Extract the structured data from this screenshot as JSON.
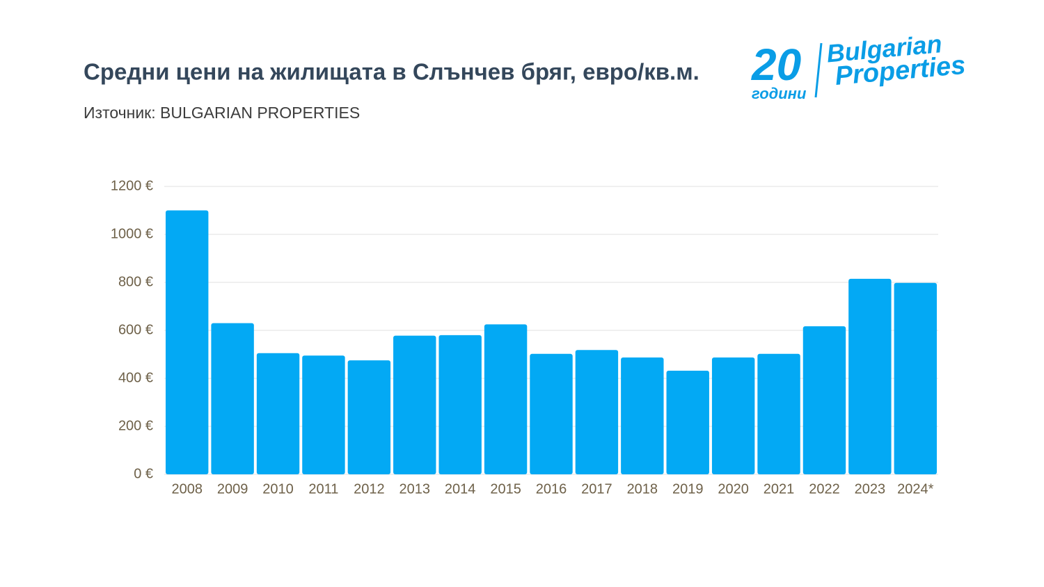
{
  "chart_data": {
    "type": "bar",
    "title": "Средни цени на жилищата в Слънчев бряг, евро/кв.м.",
    "subtitle": "Източник: BULGARIAN PROPERTIES",
    "categories": [
      "2008",
      "2009",
      "2010",
      "2011",
      "2012",
      "2013",
      "2014",
      "2015",
      "2016",
      "2017",
      "2018",
      "2019",
      "2020",
      "2021",
      "2022",
      "2023",
      "2024*"
    ],
    "values": [
      1100,
      630,
      505,
      495,
      475,
      578,
      580,
      625,
      502,
      518,
      487,
      432,
      487,
      502,
      617,
      815,
      798
    ],
    "color": "#03a9f4",
    "ylim": [
      0,
      1200
    ],
    "yticks": [
      {
        "value": 0,
        "label": "0 €"
      },
      {
        "value": 200,
        "label": "200 €"
      },
      {
        "value": 400,
        "label": "400 €"
      },
      {
        "value": 600,
        "label": "600 €"
      },
      {
        "value": 800,
        "label": "800 €"
      },
      {
        "value": 1000,
        "label": "1000 €"
      },
      {
        "value": 1200,
        "label": "1200 €"
      }
    ],
    "grid": true
  },
  "logo": {
    "number": "20",
    "years": "години",
    "line1": "Bulgarian",
    "line2": "Properties"
  }
}
